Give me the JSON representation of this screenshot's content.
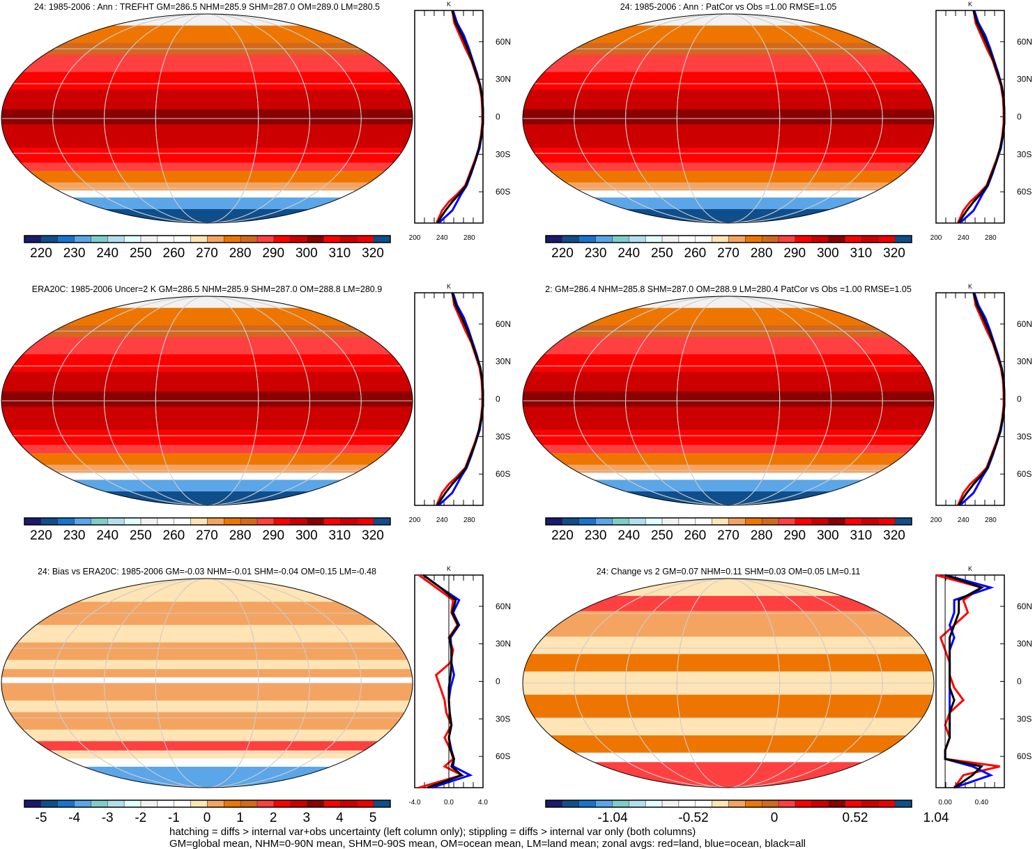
{
  "colorbar_colors": [
    "#1a1a6e",
    "#104e8b",
    "#1874cd",
    "#5aa6e8",
    "#7ecdc8",
    "#b2dfee",
    "#e0ffff",
    "#f2f2f2",
    "#ffffff",
    "#ffffff",
    "#ffe4b5",
    "#f4a460",
    "#ee7600",
    "#d2691e",
    "#ff4040",
    "#ff0000",
    "#cd0000",
    "#8b0000",
    "#ff0000",
    "#cd0000",
    "#ee0000",
    "#104e8b"
  ],
  "zonal_colors": {
    "land": "#ff0000",
    "ocean": "#0000ff",
    "all": "#000000"
  },
  "lat_labels": [
    "60N",
    "30N",
    "0",
    "30S",
    "60S"
  ],
  "profile_unit": "K",
  "panels": [
    {
      "title": "24: 1985-2006 : Ann : TREFHT GM=286.5 NHM=285.9 SHM=287.0 OM=289.0 LM=280.5",
      "kind": "abs",
      "cbar_labels": [
        "220",
        "230",
        "240",
        "250",
        "260",
        "270",
        "280",
        "290",
        "300",
        "310",
        "320"
      ],
      "xticks": [
        "200",
        "240",
        "280"
      ],
      "xrange": [
        200,
        300
      ]
    },
    {
      "title": "24: 1985-2006 : Ann : PatCor vs Obs =1.00 RMSE=1.05",
      "kind": "abs",
      "cbar_labels": [
        "220",
        "230",
        "240",
        "250",
        "260",
        "270",
        "280",
        "290",
        "300",
        "310",
        "320"
      ],
      "xticks": [
        "200",
        "240",
        "280"
      ],
      "xrange": [
        200,
        300
      ]
    },
    {
      "title": "ERA20C: 1985-2006 Uncer=2 K GM=286.5 NHM=285.9 SHM=287.0 OM=288.8 LM=280.9",
      "kind": "abs",
      "cbar_labels": [
        "220",
        "230",
        "240",
        "250",
        "260",
        "270",
        "280",
        "290",
        "300",
        "310",
        "320"
      ],
      "xticks": [
        "200",
        "240",
        "280"
      ],
      "xrange": [
        200,
        300
      ]
    },
    {
      "title": "2: GM=286.4 NHM=285.8 SHM=287.0 OM=288.9 LM=280.4 PatCor vs Obs =1.00 RMSE=1.05",
      "kind": "abs",
      "cbar_labels": [
        "220",
        "230",
        "240",
        "250",
        "260",
        "270",
        "280",
        "290",
        "300",
        "310",
        "320"
      ],
      "xticks": [
        "200",
        "240",
        "280"
      ],
      "xrange": [
        200,
        300
      ]
    },
    {
      "title": "24: Bias vs ERA20C: 1985-2006 GM=-0.03 NHM=-0.01 SHM=-0.04 OM=0.15 LM=-0.48",
      "kind": "bias",
      "cbar_labels": [
        "-5",
        "-4",
        "-3",
        "-2",
        "-1",
        "0",
        "1",
        "2",
        "3",
        "4",
        "5"
      ],
      "xticks": [
        "-4.0",
        "0.0",
        "4.0"
      ],
      "xrange": [
        -4,
        4
      ]
    },
    {
      "title": "24: Change vs 2 GM=0.07 NHM=0.11 SHM=0.03 OM=0.05 LM=0.11",
      "kind": "change",
      "cbar_labels": [
        "-1.04",
        "-0.52",
        "0",
        "0.52",
        "1.04"
      ],
      "xticks": [
        "0.00",
        "0.40"
      ],
      "xrange": [
        -0.1,
        0.65
      ]
    }
  ],
  "chart_data": {
    "type": "line",
    "lat": [
      85,
      75,
      65,
      55,
      45,
      35,
      25,
      15,
      5,
      -5,
      -15,
      -25,
      -35,
      -45,
      -55,
      -62,
      -68,
      -75,
      -85
    ],
    "abs_profile": {
      "land": [
        255,
        258,
        266,
        274,
        283,
        289,
        295,
        298,
        299,
        299,
        297,
        294,
        288,
        281,
        274,
        262,
        250,
        240,
        232
      ],
      "ocean": [
        256,
        262,
        272,
        279,
        285,
        291,
        296,
        299,
        300,
        300,
        298,
        295,
        289,
        283,
        276,
        268,
        262,
        255,
        235
      ],
      "all": [
        255,
        260,
        269,
        277,
        284,
        290,
        296,
        299,
        300,
        300,
        298,
        294,
        289,
        282,
        275,
        265,
        255,
        245,
        233
      ]
    },
    "bias_profile": {
      "land": [
        -3.5,
        -1.5,
        0.5,
        0.3,
        1.0,
        0.0,
        0.5,
        0.2,
        -1.5,
        -1.0,
        -0.5,
        -0.3,
        0.3,
        -0.5,
        0.2,
        0.5,
        -0.5,
        1.5,
        -3.5
      ],
      "ocean": [
        -3,
        -1,
        1.2,
        0.5,
        1.2,
        0.2,
        0.3,
        0.3,
        0.6,
        0.2,
        0.0,
        0.1,
        0.3,
        0.0,
        0.3,
        0.6,
        0.5,
        2.5,
        -2.0
      ],
      "all": [
        -3,
        -1,
        0.8,
        0.4,
        1.1,
        0.1,
        0.3,
        0.3,
        0.2,
        0.0,
        0.0,
        0.1,
        0.3,
        0.0,
        0.2,
        0.6,
        0.3,
        1.5,
        -2.5
      ]
    },
    "change_profile": {
      "land": [
        -0.1,
        0.4,
        0.2,
        0.25,
        0.1,
        -0.05,
        0.0,
        0.05,
        0.05,
        0.1,
        0.2,
        0.05,
        0.0,
        0.05,
        0.0,
        0.0,
        0.6,
        0.2,
        0.1
      ],
      "ocean": [
        0.0,
        0.5,
        0.1,
        0.1,
        0.05,
        0.1,
        0.05,
        0.05,
        0.05,
        0.05,
        0.05,
        0.05,
        0.05,
        0.05,
        0.0,
        0.0,
        0.3,
        0.5,
        0.1
      ],
      "all": [
        0.0,
        0.4,
        0.15,
        0.15,
        0.1,
        0.05,
        0.05,
        0.05,
        0.05,
        0.05,
        0.1,
        0.05,
        0.05,
        0.05,
        0.0,
        0.0,
        0.4,
        0.3,
        0.1
      ]
    }
  },
  "footer": {
    "line1": "hatching = diffs > internal var+obs uncertainty (left column only); stippling = diffs > internal var only (both columns)",
    "line2": "GM=global mean, NHM=0-90N mean, SHM=0-90S mean, OM=ocean mean, LM=land mean; zonal avgs: red=land, blue=ocean, black=all"
  }
}
